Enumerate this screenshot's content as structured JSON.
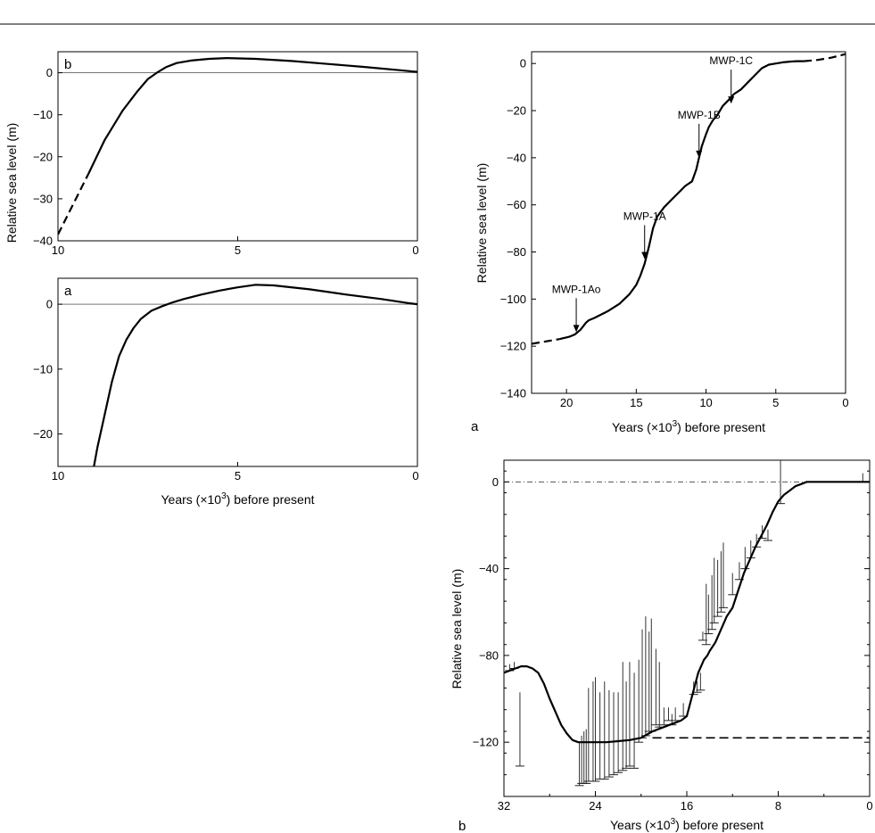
{
  "chart_data": [
    {
      "id": "left-b",
      "type": "line",
      "panel_label": "b",
      "xlabel": "",
      "ylabel": "Relative sea level (m)",
      "xlim": [
        10,
        0
      ],
      "ylim": [
        -40,
        5
      ],
      "xticks": [
        "10",
        "5",
        "0"
      ],
      "yticks": [
        "0",
        "−10",
        "−20",
        "−30",
        "−40"
      ],
      "reference_line": 0,
      "series": [
        {
          "style": "dashed",
          "x": [
            10,
            9.15
          ],
          "y": [
            -38.5,
            -24
          ]
        },
        {
          "style": "solid",
          "x": [
            9.15,
            8.7,
            8.2,
            7.8,
            7.5,
            7.25,
            7.0,
            6.7,
            6.3,
            5.8,
            5.3,
            4.5,
            3.5,
            2.5,
            1.5,
            0.5,
            0
          ],
          "y": [
            -24,
            -16,
            -9,
            -4.5,
            -1.5,
            0,
            1.3,
            2.3,
            2.9,
            3.3,
            3.5,
            3.3,
            2.8,
            2.1,
            1.4,
            0.6,
            0.2
          ]
        }
      ]
    },
    {
      "id": "left-a",
      "type": "line",
      "panel_label": "a",
      "xlabel": "Years (×10³) before present",
      "ylabel": "",
      "xlim": [
        10,
        0
      ],
      "ylim": [
        -25,
        4
      ],
      "xticks": [
        "10",
        "5",
        "0"
      ],
      "yticks": [
        "0",
        "−10",
        "−20"
      ],
      "reference_line": 0,
      "series": [
        {
          "style": "solid",
          "x": [
            9.0,
            8.9,
            8.7,
            8.5,
            8.3,
            8.1,
            7.9,
            7.7,
            7.4,
            7.1,
            6.8,
            6.5,
            6.0,
            5.5,
            5.0,
            4.5,
            4.0,
            3.0,
            2.0,
            1.0,
            0.3,
            0
          ],
          "y": [
            -25,
            -22,
            -17,
            -12,
            -8,
            -5.5,
            -3.7,
            -2.3,
            -1,
            -0.3,
            0.3,
            0.8,
            1.5,
            2.1,
            2.6,
            3.0,
            2.9,
            2.3,
            1.5,
            0.8,
            0.2,
            0
          ]
        }
      ]
    },
    {
      "id": "right-a",
      "type": "line",
      "panel_label": "a",
      "xlabel": "Years (×10³) before present",
      "ylabel": "Relative sea level (m)",
      "xlim": [
        22.5,
        0
      ],
      "ylim": [
        -140,
        5
      ],
      "xticks": [
        "20",
        "15",
        "10",
        "5",
        "0"
      ],
      "yticks": [
        "0",
        "−20",
        "−40",
        "−60",
        "−80",
        "−100",
        "−120",
        "−140"
      ],
      "series": [
        {
          "style": "dashed",
          "x": [
            22.5,
            20.5
          ],
          "y": [
            -119,
            -117
          ]
        },
        {
          "style": "solid",
          "x": [
            20.5,
            19.8,
            19.4,
            19.0,
            18.6,
            18.4,
            18.0,
            17.0,
            16.2,
            15.5,
            15.0,
            14.7,
            14.4,
            14.1,
            13.8,
            13.5,
            13.0,
            12.5,
            12.0,
            11.5,
            11.0,
            10.7,
            10.5,
            10.3,
            10.0,
            9.8,
            9.5,
            9.2,
            8.8,
            8.3,
            8.0,
            7.5,
            7.0,
            6.5,
            6.0,
            5.5,
            5.0,
            4.5,
            4.0,
            3.5,
            3.0
          ],
          "y": [
            -117,
            -116,
            -115,
            -113,
            -110,
            -109,
            -108,
            -105,
            -102,
            -98,
            -94,
            -90,
            -85,
            -78,
            -70,
            -65,
            -61,
            -58,
            -55,
            -52,
            -50,
            -45,
            -40,
            -35,
            -30,
            -27,
            -24,
            -22,
            -18,
            -15,
            -13,
            -11,
            -8,
            -5,
            -2,
            -0.5,
            0,
            0.5,
            0.8,
            1,
            1
          ]
        },
        {
          "style": "dashed",
          "x": [
            3.0,
            2.0,
            1.0,
            0
          ],
          "y": [
            1,
            1.5,
            2.5,
            4
          ]
        }
      ],
      "annotations": [
        {
          "text": "MWP-1Ao",
          "x": 19.3,
          "y": -114
        },
        {
          "text": "MWP-1A",
          "x": 14.4,
          "y": -83
        },
        {
          "text": "MWP-1B",
          "x": 10.5,
          "y": -40
        },
        {
          "text": "MWP-1C",
          "x": 8.2,
          "y": -17
        }
      ]
    },
    {
      "id": "right-b",
      "type": "line",
      "panel_label": "b",
      "xlabel": "Years (×10³) before present",
      "ylabel": "Relative sea level (m)",
      "xlim": [
        32,
        0
      ],
      "ylim": [
        -145,
        10
      ],
      "xticks": [
        "32",
        "24",
        "16",
        "8",
        "0"
      ],
      "yticks": [
        "0",
        "−40",
        "−80",
        "−120"
      ],
      "reference_line": 0,
      "lgm_dashed_level": -118,
      "series": [
        {
          "style": "solid",
          "x": [
            32,
            31,
            30.5,
            30,
            29.5,
            29,
            28.5,
            28,
            27.5,
            27,
            26.5,
            26,
            25.5,
            25,
            24.5,
            24,
            23.5,
            23,
            22,
            21,
            20,
            19,
            18,
            17.5,
            17,
            16.5,
            16,
            15.5,
            15,
            14.5,
            14.2,
            14,
            13.5,
            13,
            12.5,
            12,
            11.5,
            11,
            10.5,
            10,
            9.5,
            9,
            8.5,
            8,
            7.5,
            7,
            6.5,
            6,
            5.5,
            5,
            4.5,
            4,
            3.5,
            3,
            2.5,
            2,
            1.5,
            1,
            0.5,
            0
          ],
          "y": [
            -88,
            -86,
            -85,
            -85,
            -86,
            -88,
            -93,
            -100,
            -106,
            -112,
            -116,
            -119,
            -120,
            -120,
            -120,
            -120,
            -120,
            -120,
            -119.5,
            -119,
            -118,
            -115,
            -113,
            -112,
            -111,
            -110,
            -108,
            -98,
            -88,
            -82,
            -80,
            -78,
            -74,
            -68,
            -62,
            -58,
            -50,
            -42,
            -36,
            -30,
            -25,
            -20,
            -14,
            -9,
            -6,
            -4,
            -2,
            -1,
            0,
            0,
            0,
            0,
            0,
            0,
            0,
            0,
            0,
            0,
            0,
            0
          ]
        }
      ],
      "error_bars": [
        {
          "x": 31.5,
          "y": -87,
          "h": 3
        },
        {
          "x": 31.1,
          "y": -86,
          "h": 3
        },
        {
          "x": 30.6,
          "y": -131,
          "h": 34
        },
        {
          "x": 25.4,
          "y": -140,
          "h": 20
        },
        {
          "x": 25.2,
          "y": -139,
          "h": 22
        },
        {
          "x": 25.0,
          "y": -139,
          "h": 24
        },
        {
          "x": 24.8,
          "y": -139,
          "h": 25
        },
        {
          "x": 24.6,
          "y": -138,
          "h": 43
        },
        {
          "x": 24.2,
          "y": -138,
          "h": 46
        },
        {
          "x": 24.0,
          "y": -138,
          "h": 48
        },
        {
          "x": 23.6,
          "y": -137,
          "h": 40
        },
        {
          "x": 23.2,
          "y": -137,
          "h": 45
        },
        {
          "x": 22.8,
          "y": -136,
          "h": 40
        },
        {
          "x": 22.4,
          "y": -135,
          "h": 38
        },
        {
          "x": 22.0,
          "y": -134,
          "h": 37
        },
        {
          "x": 21.6,
          "y": -133,
          "h": 50
        },
        {
          "x": 21.3,
          "y": -132,
          "h": 40
        },
        {
          "x": 21.0,
          "y": -131,
          "h": 48
        },
        {
          "x": 20.6,
          "y": -132,
          "h": 44
        },
        {
          "x": 20.2,
          "y": -120,
          "h": 38
        },
        {
          "x": 19.9,
          "y": -118,
          "h": 50
        },
        {
          "x": 19.6,
          "y": -117,
          "h": 55
        },
        {
          "x": 19.3,
          "y": -115,
          "h": 46
        },
        {
          "x": 19.1,
          "y": -115,
          "h": 52
        },
        {
          "x": 18.7,
          "y": -112,
          "h": 35
        },
        {
          "x": 18.4,
          "y": -113,
          "h": 30
        },
        {
          "x": 18.0,
          "y": -112,
          "h": 8
        },
        {
          "x": 17.6,
          "y": -110,
          "h": 6
        },
        {
          "x": 17.3,
          "y": -112,
          "h": 5
        },
        {
          "x": 17.0,
          "y": -110,
          "h": 6
        },
        {
          "x": 16.3,
          "y": -108,
          "h": 6
        },
        {
          "x": 15.4,
          "y": -98,
          "h": 6
        },
        {
          "x": 15.1,
          "y": -97,
          "h": 5
        },
        {
          "x": 14.8,
          "y": -96,
          "h": 8
        },
        {
          "x": 14.6,
          "y": -73,
          "h": 4
        },
        {
          "x": 14.3,
          "y": -75,
          "h": 28
        },
        {
          "x": 14.1,
          "y": -70,
          "h": 18
        },
        {
          "x": 13.8,
          "y": -68,
          "h": 25
        },
        {
          "x": 13.6,
          "y": -65,
          "h": 30
        },
        {
          "x": 13.3,
          "y": -62,
          "h": 26
        },
        {
          "x": 13.0,
          "y": -60,
          "h": 28
        },
        {
          "x": 12.8,
          "y": -58,
          "h": 30
        },
        {
          "x": 12.0,
          "y": -52,
          "h": 10
        },
        {
          "x": 11.4,
          "y": -45,
          "h": 8
        },
        {
          "x": 10.9,
          "y": -40,
          "h": 10
        },
        {
          "x": 10.4,
          "y": -35,
          "h": 8
        },
        {
          "x": 9.9,
          "y": -30,
          "h": 6
        },
        {
          "x": 9.4,
          "y": -26,
          "h": 6
        },
        {
          "x": 8.9,
          "y": -27,
          "h": 5
        },
        {
          "x": 7.8,
          "y": -10,
          "h": 20
        },
        {
          "x": 0.6,
          "y": 0,
          "h": 4
        }
      ]
    }
  ]
}
